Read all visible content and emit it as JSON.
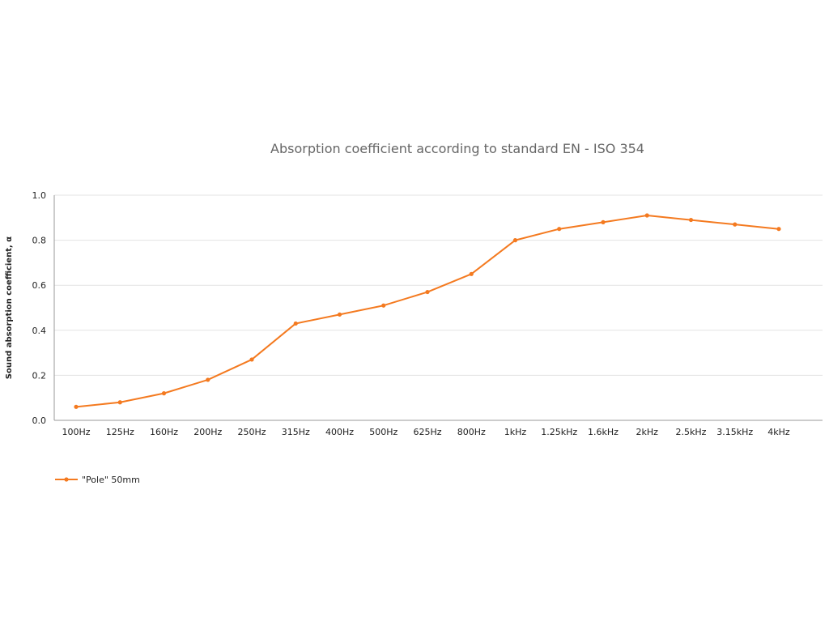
{
  "chart_data": {
    "type": "line",
    "title": "Absorption coefficient according to standard EN - ISO 354",
    "xlabel": "",
    "ylabel": "Sound absorption coefficient, α",
    "ylim": [
      0,
      1.0
    ],
    "yticks": [
      "0.0",
      "0.2",
      "0.4",
      "0.6",
      "0.8",
      "1.0"
    ],
    "grid": true,
    "legend_position": "bottom-left",
    "categories": [
      "100Hz",
      "125Hz",
      "160Hz",
      "200Hz",
      "250Hz",
      "315Hz",
      "400Hz",
      "500Hz",
      "625Hz",
      "800Hz",
      "1kHz",
      "1.25kHz",
      "1.6kHz",
      "2kHz",
      "2.5kHz",
      "3.15kHz",
      "4kHz"
    ],
    "series": [
      {
        "name": "\"Pole\" 50mm",
        "color": "#f47a20",
        "values": [
          0.06,
          0.08,
          0.12,
          0.18,
          0.27,
          0.43,
          0.47,
          0.51,
          0.57,
          0.65,
          0.8,
          0.85,
          0.88,
          0.91,
          0.89,
          0.87,
          0.85
        ]
      }
    ]
  }
}
